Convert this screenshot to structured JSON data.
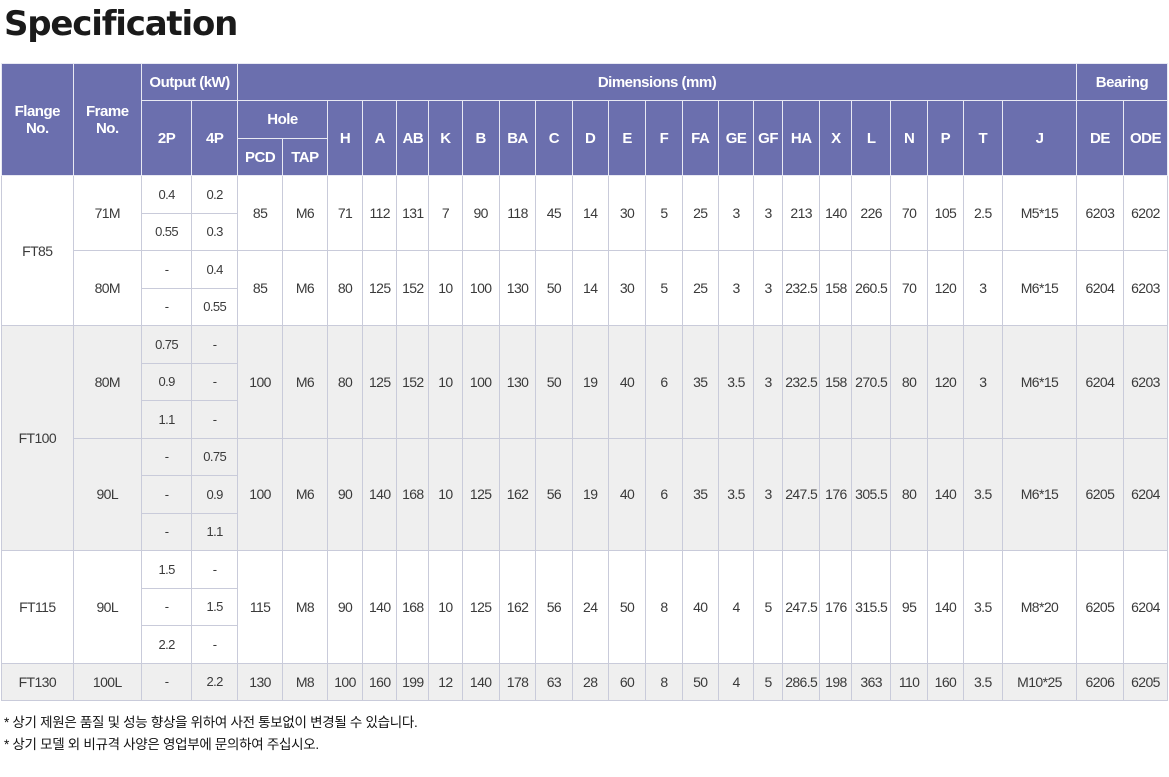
{
  "title": "Specification",
  "headers": {
    "flange": "Flange No.",
    "frame": "Frame No.",
    "output": "Output (kW)",
    "p2": "2P",
    "p4": "4P",
    "dimensions": "Dimensions (mm)",
    "hole": "Hole",
    "pcd": "PCD",
    "tap": "TAP",
    "bearing": "Bearing",
    "dims": [
      "H",
      "A",
      "AB",
      "K",
      "B",
      "BA",
      "C",
      "D",
      "E",
      "F",
      "FA",
      "GE",
      "GF",
      "HA",
      "X",
      "L",
      "N",
      "P",
      "T",
      "J"
    ],
    "de": "DE",
    "ode": "ODE"
  },
  "flanges": [
    {
      "name": "FT85",
      "frames": [
        {
          "frame": "71M",
          "outputs": [
            [
              "0.4",
              "0.2"
            ],
            [
              "0.55",
              "0.3"
            ]
          ],
          "pcd": "85",
          "tap": "M6",
          "dims": [
            "71",
            "112",
            "131",
            "7",
            "90",
            "118",
            "45",
            "14",
            "30",
            "5",
            "25",
            "3",
            "3",
            "213",
            "140",
            "226",
            "70",
            "105",
            "2.5",
            "M5*15"
          ],
          "de": "6203",
          "ode": "6202"
        },
        {
          "frame": "80M",
          "outputs": [
            [
              "-",
              "0.4"
            ],
            [
              "-",
              "0.55"
            ]
          ],
          "pcd": "85",
          "tap": "M6",
          "dims": [
            "80",
            "125",
            "152",
            "10",
            "100",
            "130",
            "50",
            "14",
            "30",
            "5",
            "25",
            "3",
            "3",
            "232.5",
            "158",
            "260.5",
            "70",
            "120",
            "3",
            "M6*15"
          ],
          "de": "6204",
          "ode": "6203"
        }
      ]
    },
    {
      "name": "FT100",
      "frames": [
        {
          "frame": "80M",
          "outputs": [
            [
              "0.75",
              "-"
            ],
            [
              "0.9",
              "-"
            ],
            [
              "1.1",
              "-"
            ]
          ],
          "pcd": "100",
          "tap": "M6",
          "dims": [
            "80",
            "125",
            "152",
            "10",
            "100",
            "130",
            "50",
            "19",
            "40",
            "6",
            "35",
            "3.5",
            "3",
            "232.5",
            "158",
            "270.5",
            "80",
            "120",
            "3",
            "M6*15"
          ],
          "de": "6204",
          "ode": "6203"
        },
        {
          "frame": "90L",
          "outputs": [
            [
              "-",
              "0.75"
            ],
            [
              "-",
              "0.9"
            ],
            [
              "-",
              "1.1"
            ]
          ],
          "pcd": "100",
          "tap": "M6",
          "dims": [
            "90",
            "140",
            "168",
            "10",
            "125",
            "162",
            "56",
            "19",
            "40",
            "6",
            "35",
            "3.5",
            "3",
            "247.5",
            "176",
            "305.5",
            "80",
            "140",
            "3.5",
            "M6*15"
          ],
          "de": "6205",
          "ode": "6204"
        }
      ]
    },
    {
      "name": "FT115",
      "frames": [
        {
          "frame": "90L",
          "outputs": [
            [
              "1.5",
              "-"
            ],
            [
              "-",
              "1.5"
            ],
            [
              "2.2",
              "-"
            ]
          ],
          "pcd": "115",
          "tap": "M8",
          "dims": [
            "90",
            "140",
            "168",
            "10",
            "125",
            "162",
            "56",
            "24",
            "50",
            "8",
            "40",
            "4",
            "5",
            "247.5",
            "176",
            "315.5",
            "95",
            "140",
            "3.5",
            "M8*20"
          ],
          "de": "6205",
          "ode": "6204"
        }
      ]
    },
    {
      "name": "FT130",
      "frames": [
        {
          "frame": "100L",
          "outputs": [
            [
              "-",
              "2.2"
            ]
          ],
          "pcd": "130",
          "tap": "M8",
          "dims": [
            "100",
            "160",
            "199",
            "12",
            "140",
            "178",
            "63",
            "28",
            "60",
            "8",
            "50",
            "4",
            "5",
            "286.5",
            "198",
            "363",
            "110",
            "160",
            "3.5",
            "M10*25"
          ],
          "de": "6206",
          "ode": "6205"
        }
      ]
    }
  ],
  "notes": [
    "* 상기 제원은 품질 및 성능 향상을 위하여 사전 통보없이 변경될 수 있습니다.",
    "* 상기 모델 외 비규격 사양은 영업부에 문의하여 주십시오."
  ]
}
